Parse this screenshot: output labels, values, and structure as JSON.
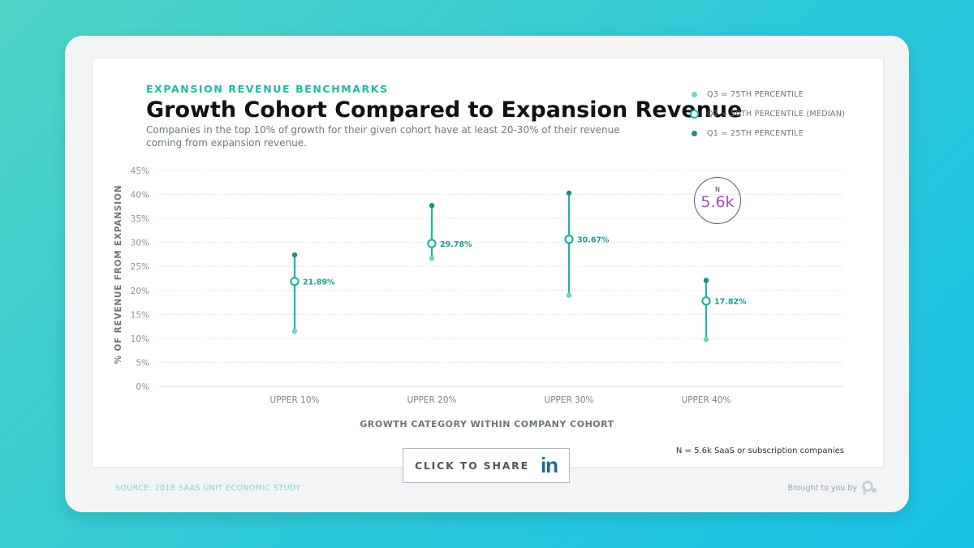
{
  "header": {
    "kicker": "EXPANSION REVENUE BENCHMARKS",
    "title": "Growth Cohort Compared to Expansion Revenue",
    "subtitle": "Companies in the top 10% of growth for their given cohort have at least 20-30% of their revenue coming from expansion revenue."
  },
  "legend": {
    "q3": "Q3 = 75TH PERCENTILE",
    "q2": "Q2 = 50TH PERCENTILE (MEDIAN)",
    "q1": "Q1 = 25TH PERCENTILE"
  },
  "badge": {
    "label": "N",
    "value": "5.6k"
  },
  "footnote": "N = 5.6k SaaS or subscription companies",
  "share": {
    "label": "CLICK TO SHARE",
    "icon_text": "in"
  },
  "source": "SOURCE: 2018 SAAS UNIT ECONOMIC STUDY",
  "brought_by": "Brought to you by",
  "colors": {
    "accent": "#1eb5a6",
    "q3": "#6fd3c5",
    "q1": "#198f83",
    "badge_value": "#a050b0",
    "linkedin": "#1668a8"
  },
  "chart_data": {
    "type": "range",
    "xlabel": "GROWTH CATEGORY WITHIN COMPANY COHORT",
    "ylabel": "% OF REVENUE FROM EXPANSION",
    "ylim": [
      0,
      45
    ],
    "yticks": [
      0,
      5,
      10,
      15,
      20,
      25,
      30,
      35,
      40,
      45
    ],
    "ytick_labels": [
      "0%",
      "5%",
      "10%",
      "15%",
      "20%",
      "25%",
      "30%",
      "35%",
      "40%",
      "45%"
    ],
    "categories": [
      "UPPER 10%",
      "UPPER 20%",
      "UPPER 30%",
      "UPPER 40%"
    ],
    "series": [
      {
        "name": "Q3 = 75TH PERCENTILE",
        "values": [
          11.5,
          26.7,
          19.0,
          9.8
        ]
      },
      {
        "name": "Q2 = 50TH PERCENTILE (MEDIAN)",
        "values": [
          21.89,
          29.78,
          30.67,
          17.82
        ]
      },
      {
        "name": "Q1 = 25TH PERCENTILE",
        "values": [
          27.4,
          37.7,
          40.3,
          22.1
        ]
      }
    ],
    "median_labels": [
      "21.89%",
      "29.78%",
      "30.67%",
      "17.82%"
    ],
    "grid": true
  }
}
